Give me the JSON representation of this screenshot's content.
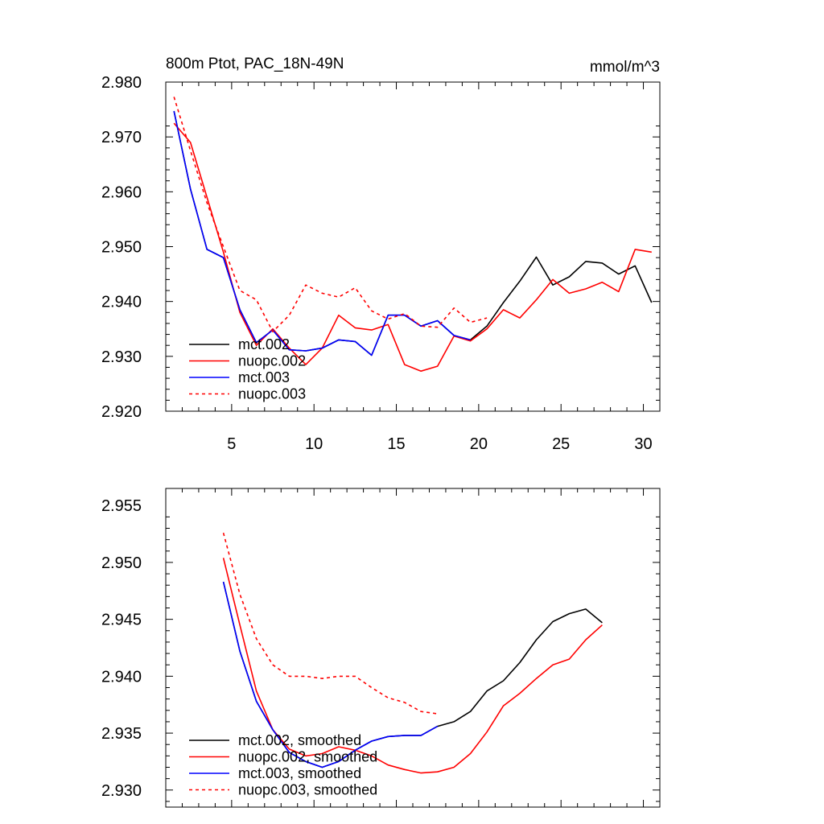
{
  "chart_data": [
    {
      "type": "line",
      "title": "800m Ptot, PAC_18N-49N",
      "units_label": "mmol/m^3",
      "xlim": [
        1,
        31
      ],
      "ylim": [
        2.92,
        2.98
      ],
      "x_ticks": [
        5,
        10,
        15,
        20,
        25,
        30
      ],
      "x_tick_labels": [
        "5",
        "10",
        "15",
        "20",
        "25",
        "30"
      ],
      "y_ticks": [
        2.92,
        2.93,
        2.94,
        2.95,
        2.96,
        2.97,
        2.98
      ],
      "y_tick_labels": [
        "2.920",
        "2.930",
        "2.940",
        "2.950",
        "2.960",
        "2.970",
        "2.980"
      ],
      "legend_position": "bottom-left",
      "series": [
        {
          "name": "mct.002",
          "color": "#000000",
          "dash": "solid",
          "x": [
            1.5,
            2.5,
            3.5,
            4.5,
            5.5,
            6.5,
            7.5,
            8.5,
            9.5,
            10.5,
            11.5,
            12.5,
            13.5,
            14.5,
            15.5,
            16.5,
            17.5,
            18.5,
            19.5,
            20.5,
            21.5,
            22.5,
            23.5,
            24.5,
            25.5,
            26.5,
            27.5,
            28.5,
            29.5,
            30.5
          ],
          "y": [
            2.9747,
            2.9605,
            2.9495,
            2.948,
            2.9385,
            2.9325,
            2.9348,
            2.9312,
            2.931,
            2.9315,
            2.933,
            2.9327,
            2.9302,
            2.9375,
            2.9375,
            2.9355,
            2.9365,
            2.9338,
            2.933,
            2.9355,
            2.9398,
            2.9437,
            2.9481,
            2.943,
            2.9445,
            2.9473,
            2.947,
            2.945,
            2.9465,
            2.9398
          ]
        },
        {
          "name": "nuopc.002",
          "color": "#ff0000",
          "dash": "solid",
          "x": [
            1.5,
            2.5,
            3.5,
            4.5,
            5.5,
            6.5,
            7.5,
            8.5,
            9.5,
            10.5,
            11.5,
            12.5,
            13.5,
            14.5,
            15.5,
            16.5,
            17.5,
            18.5,
            19.5,
            20.5,
            21.5,
            22.5,
            23.5,
            24.5,
            25.5,
            26.5,
            27.5,
            28.5,
            29.5,
            30.5
          ],
          "y": [
            2.9725,
            2.969,
            2.959,
            2.949,
            2.938,
            2.932,
            2.935,
            2.9315,
            2.9285,
            2.9315,
            2.9375,
            2.9352,
            2.9348,
            2.9358,
            2.9285,
            2.9273,
            2.9282,
            2.9337,
            2.9328,
            2.935,
            2.9385,
            2.937,
            2.9403,
            2.944,
            2.9415,
            2.9423,
            2.9435,
            2.9418,
            2.9495,
            2.949
          ]
        },
        {
          "name": "mct.003",
          "color": "#0000ff",
          "dash": "solid",
          "x": [
            1.5,
            2.5,
            3.5,
            4.5,
            5.5,
            6.5,
            7.5,
            8.5,
            9.5,
            10.5,
            11.5,
            12.5,
            13.5,
            14.5,
            15.5,
            16.5,
            17.5,
            18.5,
            19.5
          ],
          "y": [
            2.9747,
            2.9605,
            2.9495,
            2.948,
            2.9385,
            2.9325,
            2.9348,
            2.9312,
            2.931,
            2.9315,
            2.933,
            2.9327,
            2.9302,
            2.9375,
            2.9375,
            2.9355,
            2.9365,
            2.9338,
            2.933
          ]
        },
        {
          "name": "nuopc.003",
          "color": "#ff0000",
          "dash": "dashed",
          "x": [
            1.5,
            2.5,
            3.5,
            4.5,
            5.5,
            6.5,
            7.5,
            8.5,
            9.5,
            10.5,
            11.5,
            12.5,
            13.5,
            14.5,
            15.5,
            16.5,
            17.5,
            18.5,
            19.5,
            20.5
          ],
          "y": [
            2.9773,
            2.9675,
            2.958,
            2.95,
            2.942,
            2.9403,
            2.9345,
            2.9375,
            2.943,
            2.9415,
            2.9408,
            2.9425,
            2.9383,
            2.9368,
            2.9378,
            2.9355,
            2.9353,
            2.9388,
            2.9362,
            2.937
          ]
        }
      ]
    },
    {
      "type": "line",
      "title": "",
      "xlim": [
        1,
        31
      ],
      "ylim": [
        2.9285,
        2.9565
      ],
      "x_ticks": [
        5,
        10,
        15,
        20,
        25,
        30
      ],
      "y_ticks": [
        2.93,
        2.935,
        2.94,
        2.945,
        2.95,
        2.955
      ],
      "y_tick_labels": [
        "2.930",
        "2.935",
        "2.940",
        "2.945",
        "2.950",
        "2.955"
      ],
      "legend_position": "bottom-left",
      "series": [
        {
          "name": "mct.002, smoothed",
          "color": "#000000",
          "dash": "solid",
          "x": [
            4.5,
            5.5,
            6.5,
            7.5,
            8.5,
            9.5,
            10.5,
            11.5,
            12.5,
            13.5,
            14.5,
            15.5,
            16.5,
            17.5,
            18.5,
            19.5,
            20.5,
            21.5,
            22.5,
            23.5,
            24.5,
            25.5,
            26.5,
            27.5
          ],
          "y": [
            2.9483,
            2.9422,
            2.9378,
            2.9353,
            2.9333,
            2.9325,
            2.932,
            2.9325,
            2.9335,
            2.9343,
            2.9347,
            2.9348,
            2.9348,
            2.9356,
            2.936,
            2.9369,
            2.9387,
            2.9396,
            2.9412,
            2.9432,
            2.9448,
            2.9455,
            2.9459,
            2.9447
          ]
        },
        {
          "name": "nuopc.002, smoothed",
          "color": "#ff0000",
          "dash": "solid",
          "x": [
            4.5,
            5.5,
            6.5,
            7.5,
            8.5,
            9.5,
            10.5,
            11.5,
            12.5,
            13.5,
            14.5,
            15.5,
            16.5,
            17.5,
            18.5,
            19.5,
            20.5,
            21.5,
            22.5,
            23.5,
            24.5,
            25.5,
            26.5,
            27.5
          ],
          "y": [
            2.9504,
            2.9445,
            2.9387,
            2.9353,
            2.9336,
            2.933,
            2.9332,
            2.9338,
            2.9335,
            2.933,
            2.9322,
            2.9318,
            2.9315,
            2.9316,
            2.932,
            2.9332,
            2.9351,
            2.9374,
            2.9385,
            2.9398,
            2.941,
            2.9415,
            2.9432,
            2.9445
          ]
        },
        {
          "name": "mct.003, smoothed",
          "color": "#0000ff",
          "dash": "solid",
          "x": [
            4.5,
            5.5,
            6.5,
            7.5,
            8.5,
            9.5,
            10.5,
            11.5,
            12.5,
            13.5,
            14.5,
            15.5,
            16.5,
            17.5
          ],
          "y": [
            2.9483,
            2.9422,
            2.9378,
            2.9353,
            2.9333,
            2.9325,
            2.932,
            2.9325,
            2.9335,
            2.9343,
            2.9347,
            2.9348,
            2.9348,
            2.9356
          ]
        },
        {
          "name": "nuopc.003, smoothed",
          "color": "#ff0000",
          "dash": "dashed",
          "x": [
            4.5,
            5.5,
            6.5,
            7.5,
            8.5,
            9.5,
            10.5,
            11.5,
            12.5,
            13.5,
            14.5,
            15.5,
            16.5,
            17.5
          ],
          "y": [
            2.9526,
            2.9472,
            2.9433,
            2.941,
            2.94,
            2.94,
            2.9398,
            2.94,
            2.94,
            2.939,
            2.9381,
            2.9377,
            2.9369,
            2.9367
          ]
        }
      ]
    }
  ]
}
